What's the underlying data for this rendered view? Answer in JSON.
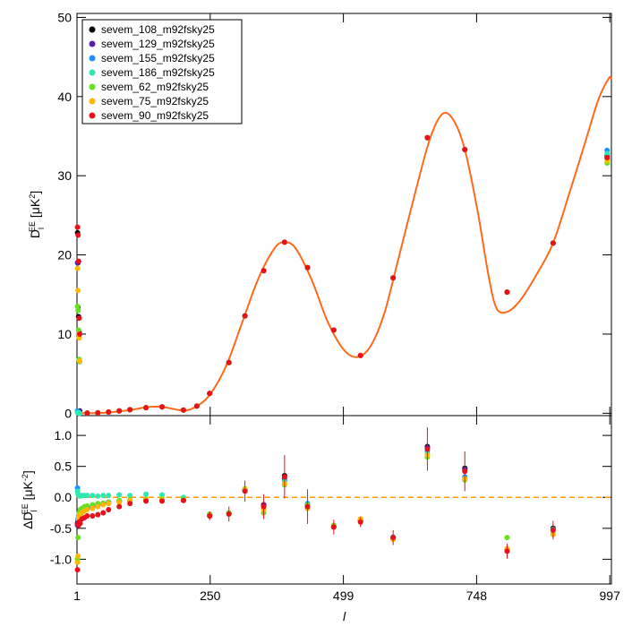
{
  "chart_data": [
    {
      "type": "scatter",
      "y_label": [
        "D",
        "l",
        "EE",
        " [μK",
        "2",
        "]"
      ],
      "xlim": [
        1,
        1000
      ],
      "ylim": [
        -0.3,
        50.5
      ],
      "yticks": [
        0,
        10,
        20,
        30,
        40,
        50
      ],
      "legend": "top-left",
      "theory": {
        "color": "#ff6a1a",
        "x": [
          2,
          50,
          100,
          130,
          160,
          200,
          225,
          250,
          280,
          310,
          340,
          370,
          389,
          410,
          440,
          470,
          500,
          525,
          550,
          575,
          600,
          630,
          660,
          684,
          705,
          726,
          750,
          770,
          785,
          805,
          830,
          860,
          891,
          920,
          950,
          975,
          995,
          1000
        ],
        "values": [
          0,
          0.05,
          0.4,
          0.75,
          0.8,
          0.35,
          0.9,
          2.4,
          6,
          11.5,
          17,
          20.8,
          21.6,
          20.8,
          16.8,
          11.5,
          8,
          7.1,
          8.5,
          12.5,
          19,
          27,
          34.5,
          37.8,
          37,
          33.3,
          25.5,
          17.5,
          13.3,
          12.8,
          14.3,
          17.5,
          21.5,
          27.5,
          34,
          39.5,
          42.3,
          42.2
        ]
      },
      "x": [
        2,
        3,
        4,
        5,
        6,
        20,
        40,
        60,
        80,
        100,
        130,
        160,
        200,
        225,
        249,
        285,
        315,
        350,
        389,
        432,
        481,
        531,
        592,
        656,
        726,
        805,
        891,
        992
      ],
      "series": [
        {
          "name": "sevem_108_m92fsky25",
          "color": "#000000",
          "values": [
            22.8,
            19.0,
            12.2,
            10.2,
            0.3,
            0.02,
            0.05,
            0.15,
            0.3,
            0.45,
            0.7,
            0.8,
            0.4,
            0.9,
            2.5,
            6.4,
            12.3,
            18.0,
            21.6,
            18.4,
            10.5,
            7.3,
            17.1,
            34.8,
            33.3,
            15.3,
            21.5,
            32.5
          ]
        },
        {
          "name": "sevem_129_m92fsky25",
          "color": "#5a1fa8",
          "values": [
            19.0,
            13.4,
            10.0,
            6.7,
            0.2,
            0.02,
            0.05,
            0.15,
            0.3,
            0.45,
            0.7,
            0.8,
            0.4,
            0.9,
            2.5,
            6.4,
            12.3,
            18.0,
            21.6,
            18.4,
            10.5,
            7.3,
            17.1,
            34.8,
            33.3,
            15.3,
            21.5,
            32.2
          ]
        },
        {
          "name": "sevem_155_m92fsky25",
          "color": "#1e90ff",
          "values": [
            0.3,
            0.2,
            0.1,
            0.05,
            0.0,
            0.02,
            0.05,
            0.15,
            0.3,
            0.45,
            0.7,
            0.8,
            0.4,
            0.9,
            2.5,
            6.4,
            12.3,
            18.0,
            21.6,
            18.4,
            10.5,
            7.3,
            17.1,
            34.8,
            33.3,
            15.3,
            21.5,
            33.2
          ]
        },
        {
          "name": "sevem_186_m92fsky25",
          "color": "#2ee8b0",
          "values": [
            0.1,
            0.05,
            0.02,
            0.0,
            0.0,
            0.02,
            0.05,
            0.15,
            0.3,
            0.45,
            0.7,
            0.8,
            0.4,
            0.9,
            2.5,
            6.4,
            12.3,
            18.0,
            21.6,
            18.4,
            10.5,
            7.3,
            17.1,
            34.8,
            33.3,
            15.3,
            21.5,
            32.8
          ]
        },
        {
          "name": "sevem_62_m92fsky25",
          "color": "#66e020",
          "values": [
            13.5,
            13.0,
            10.5,
            6.8,
            6.5,
            0.02,
            0.05,
            0.15,
            0.3,
            0.45,
            0.7,
            0.8,
            0.4,
            0.9,
            2.5,
            6.4,
            12.3,
            18.0,
            21.6,
            18.4,
            10.5,
            7.3,
            17.1,
            34.8,
            33.3,
            15.3,
            21.5,
            31.6
          ]
        },
        {
          "name": "sevem_75_m92fsky25",
          "color": "#ffb800",
          "values": [
            18.3,
            15.5,
            10.0,
            9.5,
            6.6,
            0.02,
            0.05,
            0.15,
            0.3,
            0.45,
            0.7,
            0.8,
            0.4,
            0.9,
            2.5,
            6.4,
            12.3,
            18.0,
            21.6,
            18.4,
            10.5,
            7.3,
            17.1,
            34.8,
            33.3,
            15.3,
            21.5,
            31.9
          ]
        },
        {
          "name": "sevem_90_m92fsky25",
          "color": "#e8101a",
          "values": [
            23.5,
            22.5,
            19.2,
            12.0,
            10.0,
            0.02,
            0.05,
            0.15,
            0.3,
            0.45,
            0.7,
            0.8,
            0.4,
            0.9,
            2.5,
            6.4,
            12.3,
            18.0,
            21.6,
            18.4,
            10.5,
            7.3,
            17.1,
            34.8,
            33.3,
            15.3,
            21.5,
            32.3
          ]
        }
      ]
    },
    {
      "type": "scatter",
      "y_label": [
        "ΔD",
        "l",
        "EE",
        " [μK",
        "-2",
        "]"
      ],
      "x_label": "l",
      "xlim": [
        1,
        1000
      ],
      "ylim": [
        -1.4,
        1.32
      ],
      "xticks": [
        1,
        250,
        499,
        748,
        997
      ],
      "yticks": [
        {
          "value": -1,
          "label": "-1.0"
        },
        -0.5,
        {
          "value": 0,
          "label": "0.0"
        },
        0.5,
        {
          "value": 1,
          "label": "1.0"
        }
      ],
      "reference_line": {
        "value": 0,
        "color": "#ff9a00"
      },
      "x": [
        2,
        3,
        4,
        5,
        7,
        10,
        15,
        20,
        30,
        40,
        50,
        60,
        80,
        100,
        130,
        160,
        200,
        249,
        285,
        315,
        350,
        389,
        432,
        481,
        531,
        592,
        656,
        726,
        805,
        891
      ],
      "series": [
        {
          "color": "#000000",
          "values": [
            -0.42,
            -0.38,
            -0.34,
            -0.3,
            -0.27,
            -0.24,
            -0.2,
            -0.18,
            -0.15,
            -0.12,
            -0.1,
            -0.08,
            -0.06,
            -0.05,
            -0.04,
            -0.04,
            -0.05,
            -0.28,
            -0.26,
            0.12,
            -0.12,
            0.35,
            -0.13,
            -0.48,
            -0.38,
            -0.65,
            0.82,
            0.47,
            -0.85,
            -0.5
          ]
        },
        {
          "color": "#5a1fa8",
          "values": [
            -0.45,
            -0.4,
            -0.35,
            -0.3,
            -0.27,
            -0.24,
            -0.2,
            -0.18,
            -0.15,
            -0.12,
            -0.1,
            -0.08,
            -0.06,
            -0.05,
            -0.04,
            -0.04,
            -0.05,
            -0.29,
            -0.26,
            0.13,
            -0.12,
            0.3,
            -0.12,
            -0.47,
            -0.38,
            -0.65,
            0.8,
            0.45,
            -0.85,
            -0.52
          ]
        },
        {
          "color": "#1e90ff",
          "values": [
            0.15,
            -0.35,
            -0.3,
            -0.28,
            -0.25,
            -0.22,
            -0.2,
            -0.18,
            -0.15,
            -0.12,
            -0.1,
            -0.08,
            -0.06,
            -0.05,
            -0.04,
            -0.03,
            -0.04,
            -0.28,
            -0.26,
            0.12,
            -0.2,
            0.27,
            -0.1,
            -0.47,
            -0.37,
            -0.64,
            0.75,
            0.33,
            -0.85,
            -0.52
          ]
        },
        {
          "color": "#2ee8b0",
          "values": [
            0.1,
            0.05,
            0.04,
            0.03,
            0.02,
            0.03,
            0.03,
            0.03,
            0.03,
            0.02,
            0.03,
            0.03,
            0.04,
            0.03,
            0.05,
            0.04,
            0.0,
            -0.28,
            -0.27,
            0.12,
            -0.25,
            0.25,
            -0.15,
            -0.48,
            -0.38,
            -0.65,
            0.7,
            0.3,
            -0.85,
            -0.52
          ]
        },
        {
          "color": "#66e020",
          "values": [
            -1.0,
            -0.65,
            -0.3,
            -0.25,
            -0.2,
            -0.18,
            -0.15,
            -0.14,
            -0.12,
            -0.1,
            -0.1,
            -0.08,
            -0.05,
            -0.04,
            -0.03,
            -0.02,
            -0.04,
            -0.27,
            -0.25,
            0.14,
            -0.25,
            0.2,
            -0.12,
            -0.45,
            -0.35,
            -0.65,
            0.65,
            0.28,
            -0.65,
            -0.58
          ]
        },
        {
          "color": "#ffb800",
          "values": [
            -1.05,
            -0.95,
            -0.35,
            -0.3,
            -0.28,
            -0.25,
            -0.22,
            -0.2,
            -0.18,
            -0.15,
            -0.12,
            -0.1,
            -0.08,
            -0.05,
            -0.04,
            -0.04,
            -0.05,
            -0.3,
            -0.27,
            0.13,
            -0.2,
            0.22,
            -0.18,
            -0.48,
            -0.35,
            -0.68,
            0.68,
            0.3,
            -0.83,
            -0.6
          ]
        },
        {
          "color": "#e8101a",
          "values": [
            -1.17,
            -0.43,
            -0.45,
            -0.4,
            -0.42,
            -0.35,
            -0.33,
            -0.3,
            -0.3,
            -0.28,
            -0.25,
            -0.2,
            -0.15,
            -0.1,
            -0.06,
            -0.06,
            -0.05,
            -0.3,
            -0.27,
            0.1,
            -0.15,
            0.33,
            -0.15,
            -0.48,
            -0.4,
            -0.65,
            0.78,
            0.42,
            -0.87,
            -0.53
          ],
          "errors": [
            0.04,
            0.04,
            0.04,
            0.04,
            0.04,
            0.04,
            0.04,
            0.04,
            0.04,
            0.04,
            0.04,
            0.04,
            0.04,
            0.04,
            0.04,
            0.04,
            0.04,
            0.07,
            0.12,
            0.17,
            0.2,
            0.35,
            0.28,
            0.12,
            0.08,
            0.12,
            0.35,
            0.32,
            0.12,
            0.15
          ]
        }
      ]
    }
  ]
}
